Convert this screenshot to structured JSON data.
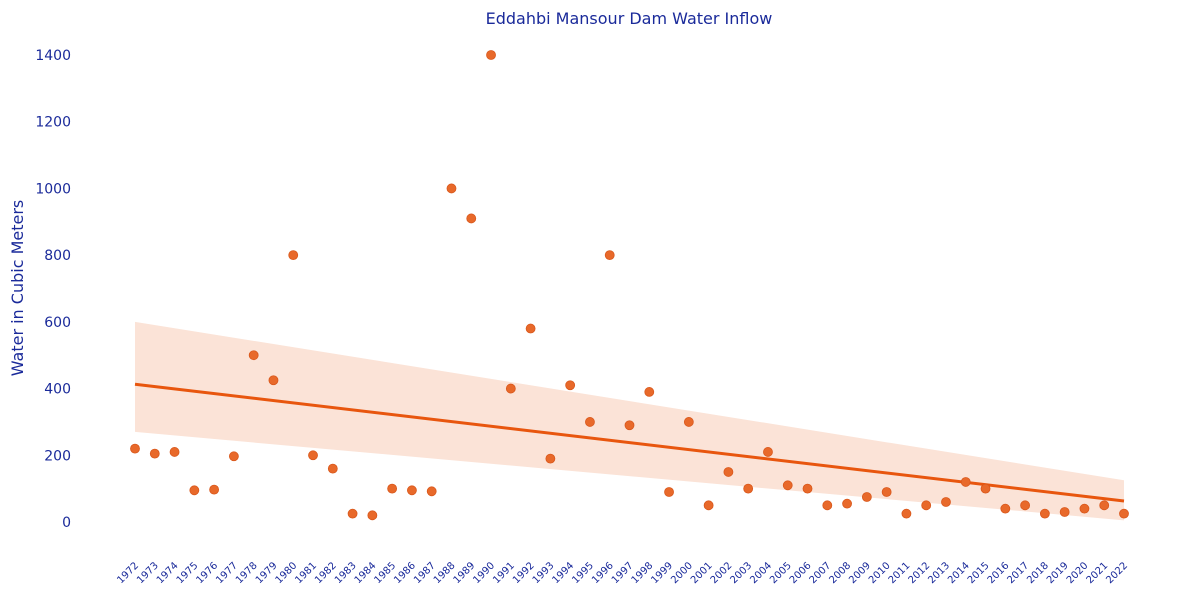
{
  "chart_data": {
    "type": "scatter",
    "title": "Eddahbi Mansour Dam Water Inflow",
    "xlabel": "",
    "ylabel": "Water in Cubic Meters",
    "ylim": [
      -60,
      1450
    ],
    "yticks": [
      0,
      200,
      400,
      600,
      800,
      1000,
      1200,
      1400
    ],
    "grid": false,
    "legend": "none",
    "x": [
      1972,
      1973,
      1974,
      1975,
      1976,
      1977,
      1978,
      1979,
      1980,
      1981,
      1982,
      1983,
      1984,
      1985,
      1986,
      1987,
      1988,
      1989,
      1990,
      1991,
      1992,
      1993,
      1994,
      1995,
      1996,
      1997,
      1998,
      1999,
      2000,
      2001,
      2002,
      2003,
      2004,
      2005,
      2006,
      2007,
      2008,
      2009,
      2010,
      2011,
      2012,
      2013,
      2014,
      2015,
      2016,
      2017,
      2018,
      2019,
      2020,
      2021,
      2022
    ],
    "values": [
      220,
      205,
      210,
      95,
      97,
      197,
      500,
      425,
      800,
      200,
      160,
      25,
      20,
      100,
      95,
      92,
      1000,
      910,
      1400,
      400,
      580,
      190,
      410,
      300,
      800,
      290,
      390,
      90,
      300,
      50,
      150,
      100,
      210,
      110,
      100,
      50,
      55,
      75,
      90,
      25,
      50,
      60,
      120,
      100,
      40,
      50,
      25,
      30,
      40,
      50,
      25
    ],
    "trend": {
      "start": 413,
      "end": 63
    },
    "confidence_band": {
      "start": [
        270,
        600
      ],
      "end": [
        5,
        125
      ]
    },
    "colors": {
      "points": "#e8692a",
      "trend": "#e8560e",
      "band": "#fbe3d7",
      "text": "#1a2a9a"
    }
  }
}
